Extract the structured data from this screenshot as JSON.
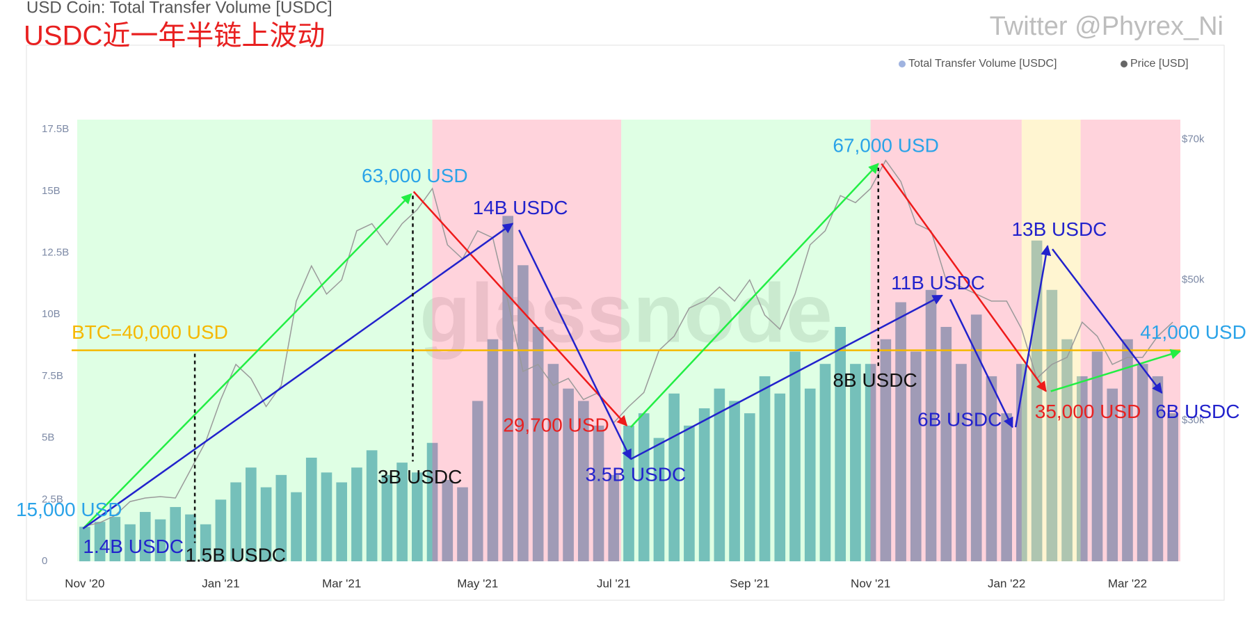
{
  "chart_data": {
    "type": "bar",
    "title": "USD Coin: Total Transfer Volume [USDC]",
    "subtitle": "USDC近一年半链上波动",
    "credit": "Twitter @Phyrex_Ni",
    "watermark": "glassnode",
    "legend": "top-right",
    "categories": [
      "Nov '20",
      null,
      null,
      null,
      null,
      null,
      null,
      null,
      null,
      "Jan '21",
      null,
      null,
      null,
      null,
      null,
      null,
      null,
      "Mar '21",
      null,
      null,
      null,
      null,
      null,
      null,
      null,
      null,
      "May '21",
      null,
      null,
      null,
      null,
      null,
      null,
      null,
      null,
      "Jul '21",
      null,
      null,
      null,
      null,
      null,
      null,
      null,
      null,
      "Sep '21",
      null,
      null,
      null,
      null,
      null,
      null,
      null,
      "Nov '21",
      null,
      null,
      null,
      null,
      null,
      null,
      null,
      null,
      "Jan '22",
      null,
      null,
      null,
      null,
      null,
      null,
      null,
      "Mar '22",
      null,
      null,
      null
    ],
    "series": [
      {
        "name": "Total Transfer Volume [USDC]",
        "color": "#78afc9",
        "values": [
          1.4,
          1.6,
          1.8,
          1.5,
          2.0,
          1.7,
          2.2,
          1.9,
          1.5,
          2.5,
          3.2,
          3.8,
          3.0,
          3.5,
          2.8,
          4.2,
          3.6,
          3.2,
          3.8,
          4.5,
          3.5,
          4.0,
          3.6,
          4.8,
          3.3,
          3.0,
          6.5,
          9.0,
          14.0,
          12.0,
          9.5,
          8.0,
          7.0,
          6.5,
          5.5,
          3.5,
          5.5,
          6.0,
          5.0,
          6.8,
          5.5,
          6.2,
          7.0,
          6.5,
          6.0,
          7.5,
          6.8,
          8.5,
          7.0,
          8.0,
          9.5,
          8.0,
          8.0,
          9.0,
          10.5,
          8.5,
          11.0,
          9.5,
          8.0,
          10.0,
          7.5,
          6.0,
          8.0,
          13.0,
          11.0,
          9.0,
          7.5,
          8.5,
          7.0,
          9.0,
          8.0,
          7.5,
          6.0
        ]
      },
      {
        "name": "Price [USD]",
        "color": "#9a9a9a",
        "type": "line",
        "axis": "y2",
        "values": [
          15000,
          15500,
          16500,
          18500,
          19000,
          19200,
          19000,
          23000,
          27000,
          33000,
          38000,
          36000,
          32000,
          35000,
          47000,
          52000,
          48000,
          50000,
          57000,
          58000,
          55000,
          58000,
          60000,
          63000,
          55000,
          53000,
          57000,
          56000,
          47000,
          37000,
          38000,
          35000,
          36000,
          33000,
          34000,
          29700,
          32000,
          34000,
          40000,
          42000,
          46000,
          47000,
          49000,
          47000,
          50000,
          45000,
          43000,
          48000,
          55000,
          57000,
          62000,
          61000,
          63000,
          67000,
          64000,
          58000,
          57000,
          50000,
          49000,
          48000,
          47000,
          47000,
          43000,
          36000,
          38000,
          39000,
          44000,
          42000,
          38000,
          39000,
          39000,
          42000,
          44000
        ]
      }
    ],
    "ylim": [
      0,
      17.9
    ],
    "yticks": [
      0,
      {
        "value": 2.5,
        "label": "2.5B"
      },
      {
        "value": 5,
        "label": "5B"
      },
      {
        "value": 7.5,
        "label": "7.5B"
      },
      {
        "value": 10,
        "label": "10B"
      },
      {
        "value": 12.5,
        "label": "12.5B"
      },
      {
        "value": 15,
        "label": "15B"
      },
      {
        "value": 17.5,
        "label": "17.5B"
      }
    ],
    "y2lim": [
      10000,
      72800
    ],
    "y2ticks": [
      {
        "value": 30000,
        "label": "$30k"
      },
      {
        "value": 50000,
        "label": "$50k"
      },
      {
        "value": 70000,
        "label": "$70k"
      }
    ],
    "reference_line": {
      "value": 40000,
      "label": "BTC=40,000 USD",
      "color": "#f5b800"
    },
    "annotations": [
      {
        "text": "15,000 USD",
        "color": "#2aa3e8"
      },
      {
        "text": "1.4B USDC",
        "color": "#2222cc"
      },
      {
        "text": "1.5B USDC",
        "color": "#111111"
      },
      {
        "text": "63,000 USD",
        "color": "#2aa3e8"
      },
      {
        "text": "3B USDC",
        "color": "#111111"
      },
      {
        "text": "14B USDC",
        "color": "#2222cc"
      },
      {
        "text": "29,700 USD",
        "color": "#e82020"
      },
      {
        "text": "3.5B USDC",
        "color": "#2222cc"
      },
      {
        "text": "67,000 USD",
        "color": "#2aa3e8"
      },
      {
        "text": "8B USDC",
        "color": "#111111"
      },
      {
        "text": "11B USDC",
        "color": "#2222cc"
      },
      {
        "text": "6B USDC",
        "color": "#2222cc"
      },
      {
        "text": "13B USDC",
        "color": "#2222cc"
      },
      {
        "text": "35,000 USD",
        "color": "#e82020"
      },
      {
        "text": "6B USDC",
        "color": "#2222cc"
      },
      {
        "text": "41,000 USD",
        "color": "#2aa3e8"
      }
    ]
  }
}
